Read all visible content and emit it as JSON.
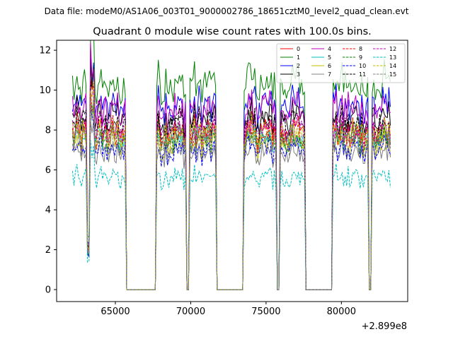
{
  "chart_data": {
    "type": "line",
    "suptitle": "Data file: modeM0/AS1A06_003T01_9000002786_18651cztM0_level2_quad_clean.evt",
    "title": "Quadrant 0 module wise count rates with 100.0s bins.",
    "xlabel": "",
    "ylabel": "",
    "x_offset_label": "+2.899e8",
    "xlim": [
      61100,
      84400
    ],
    "ylim": [
      -0.6,
      12.5
    ],
    "x_ticks": [
      65000,
      70000,
      75000,
      80000
    ],
    "y_ticks": [
      0,
      2,
      4,
      6,
      8,
      10,
      12
    ],
    "segments": [
      {
        "start": 62150,
        "end": 65650
      },
      {
        "start": 67750,
        "end": 69650
      },
      {
        "start": 69950,
        "end": 71650
      },
      {
        "start": 73550,
        "end": 75650
      },
      {
        "start": 75950,
        "end": 77550
      },
      {
        "start": 79450,
        "end": 81750
      },
      {
        "start": 82050,
        "end": 83250
      }
    ],
    "series": [
      {
        "name": "0",
        "color": "#ff0000",
        "dash": "solid",
        "level": 7.9
      },
      {
        "name": "1",
        "color": "#008000",
        "dash": "solid",
        "level": 10.3
      },
      {
        "name": "2",
        "color": "#0000ff",
        "dash": "solid",
        "level": 9.2
      },
      {
        "name": "3",
        "color": "#000000",
        "dash": "solid",
        "level": 8.6
      },
      {
        "name": "4",
        "color": "#bf00bf",
        "dash": "solid",
        "level": 9.0
      },
      {
        "name": "5",
        "color": "#00bfbf",
        "dash": "solid",
        "level": 7.6
      },
      {
        "name": "6",
        "color": "#bfbf00",
        "dash": "solid",
        "level": 7.3
      },
      {
        "name": "7",
        "color": "#808080",
        "dash": "solid",
        "level": 6.8
      },
      {
        "name": "8",
        "color": "#ff0000",
        "dash": "dashed",
        "level": 7.7
      },
      {
        "name": "9",
        "color": "#008000",
        "dash": "dashed",
        "level": 7.5
      },
      {
        "name": "10",
        "color": "#0000ff",
        "dash": "dashed",
        "level": 7.0
      },
      {
        "name": "11",
        "color": "#000000",
        "dash": "dashed",
        "level": 8.3
      },
      {
        "name": "12",
        "color": "#bf00bf",
        "dash": "dashed",
        "level": 8.0
      },
      {
        "name": "13",
        "color": "#00bfbf",
        "dash": "dashed",
        "level": 5.6
      },
      {
        "name": "14",
        "color": "#bfbf00",
        "dash": "dashed",
        "level": 7.8
      },
      {
        "name": "15",
        "color": "#808080",
        "dash": "dashed",
        "level": 7.4
      }
    ],
    "legend_position": "top-right",
    "legend_columns": 4
  }
}
